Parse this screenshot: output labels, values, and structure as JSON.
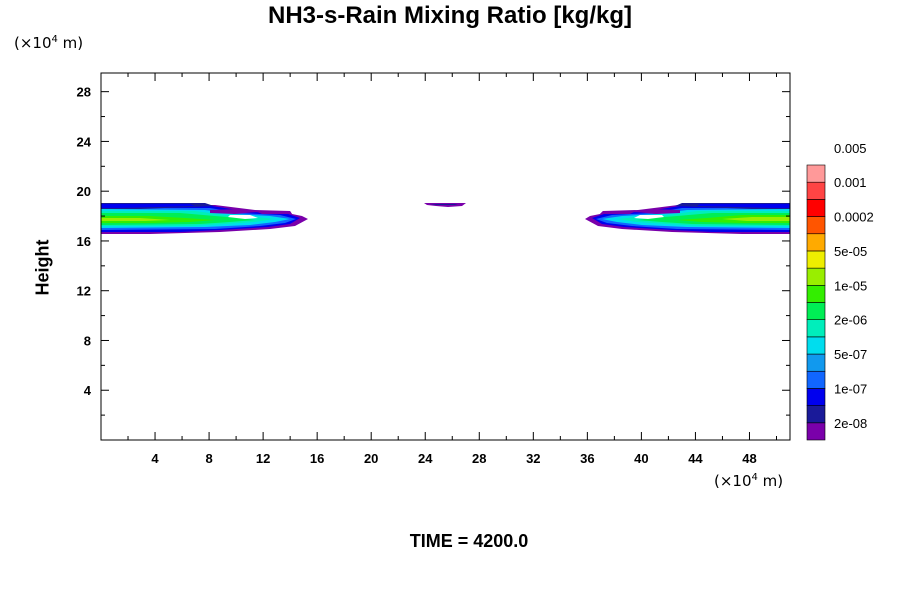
{
  "chart_data": {
    "type": "contour",
    "title": "NH3-s-Rain Mixing Ratio [kg/kg]",
    "xlabel": "",
    "ylabel": "Height",
    "x_unit": "(×10⁴ m)",
    "y_unit": "(×10⁴ m)",
    "xlim": [
      0,
      51
    ],
    "ylim": [
      0,
      29.5
    ],
    "x_ticks": [
      4,
      8,
      12,
      16,
      20,
      24,
      28,
      32,
      36,
      40,
      44,
      48
    ],
    "y_ticks": [
      4,
      8,
      12,
      16,
      20,
      24,
      28
    ],
    "footer": "TIME = 4200.0",
    "colorbar": {
      "colors": [
        "#7a00aa",
        "#1a1a99",
        "#0000ee",
        "#1166ff",
        "#1199ee",
        "#00ddee",
        "#00eebb",
        "#00ee55",
        "#33ee00",
        "#99ee00",
        "#eeee00",
        "#ffaa00",
        "#ff5500",
        "#ff0000",
        "#ff4444",
        "#ff9999"
      ],
      "labels": [
        "2e-08",
        "1e-07",
        "5e-07",
        "2e-06",
        "1e-05",
        "5e-05",
        "0.0002",
        "0.001",
        "0.005"
      ]
    },
    "regions": [
      {
        "name": "left-cloud",
        "x": [
          0,
          15.5
        ],
        "y": [
          16.8,
          19.2
        ]
      },
      {
        "name": "center-patch",
        "x": [
          24.2,
          27.3
        ],
        "y": [
          19.0,
          19.4
        ]
      },
      {
        "name": "right-cloud",
        "x": [
          35.5,
          51
        ],
        "y": [
          16.8,
          19.2
        ]
      }
    ]
  }
}
